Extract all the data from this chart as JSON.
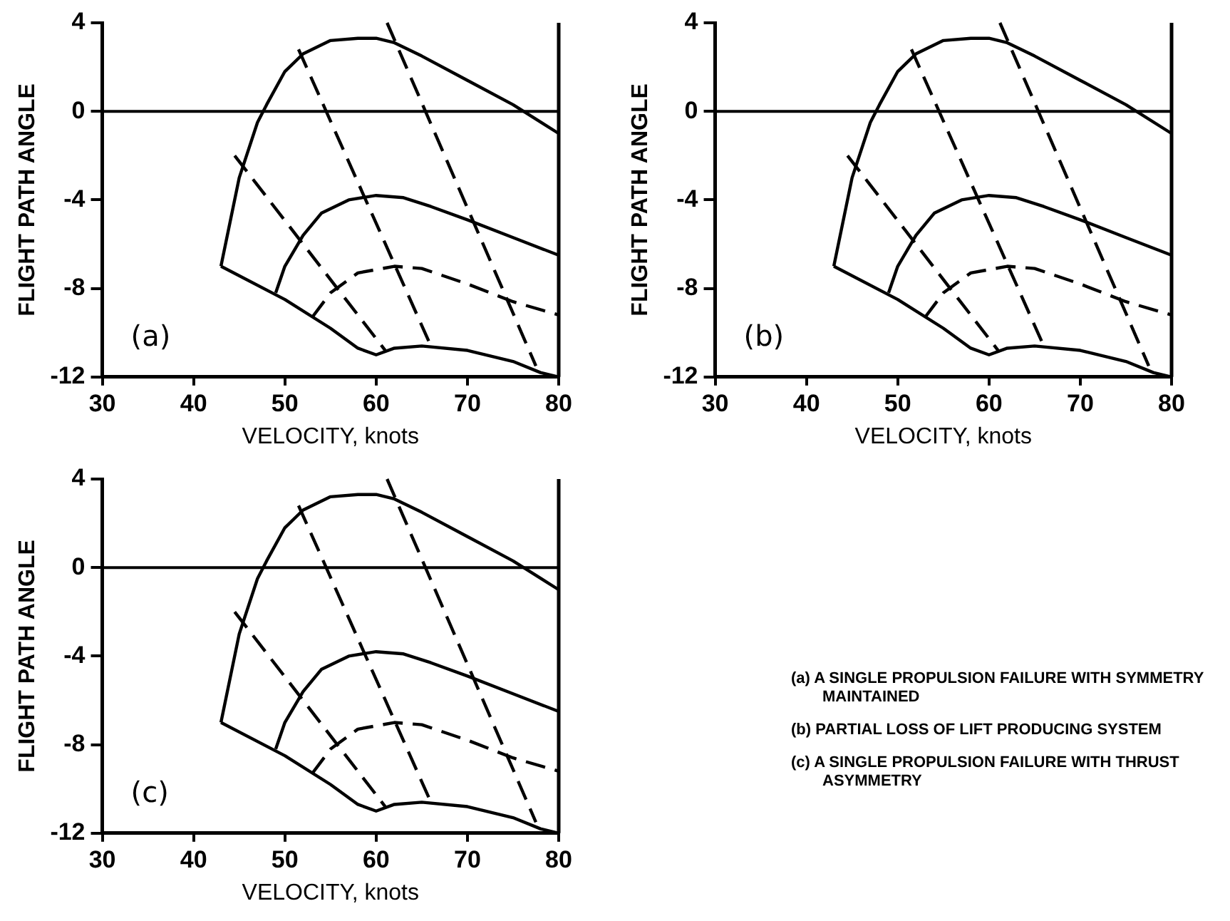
{
  "chart_data": [
    {
      "type": "line",
      "xlabel": "VELOCITY, knots",
      "ylabel": "FLIGHT PATH ANGLE",
      "annotations": [
        "(a)"
      ],
      "xlim": [
        30,
        80
      ],
      "ylim": [
        -12,
        4
      ],
      "xticks": [
        30,
        40,
        50,
        60,
        70,
        80
      ],
      "yticks": [
        -12,
        -8,
        -4,
        0,
        4
      ],
      "grid": false,
      "legend": false,
      "marker": "none",
      "ref_lines": [
        {
          "axis": "y",
          "value": 0
        }
      ],
      "series": [
        {
          "color": "#000000",
          "line_style": "solid",
          "x": [
            43,
            45,
            47,
            48,
            50,
            52,
            55,
            58,
            60,
            62,
            65,
            70,
            75,
            80
          ],
          "values": [
            -7,
            -3,
            -0.5,
            0.3,
            1.8,
            2.6,
            3.2,
            3.3,
            3.3,
            3.1,
            2.5,
            1.4,
            0.3,
            -1
          ]
        },
        {
          "color": "#000000",
          "line_style": "solid",
          "x": [
            43,
            50,
            55,
            58,
            60,
            62,
            65,
            70,
            75,
            78,
            80
          ],
          "values": [
            -7,
            -8.5,
            -9.8,
            -10.7,
            -11,
            -10.7,
            -10.6,
            -10.8,
            -11.3,
            -11.8,
            -12
          ]
        },
        {
          "color": "#000000",
          "line_style": "solid",
          "x": [
            49,
            50,
            52,
            54,
            57,
            60,
            63,
            66,
            70,
            75,
            80
          ],
          "values": [
            -8.2,
            -7,
            -5.6,
            -4.6,
            -4,
            -3.8,
            -3.9,
            -4.3,
            -4.9,
            -5.7,
            -6.5
          ]
        },
        {
          "color": "#000000",
          "line_style": "dashed",
          "x": [
            53,
            55,
            58,
            62,
            65,
            70,
            75,
            80
          ],
          "values": [
            -9.3,
            -8.2,
            -7.3,
            -7,
            -7.1,
            -7.8,
            -8.6,
            -9.2
          ]
        },
        {
          "color": "#000000",
          "line_style": "dashed",
          "x": [
            44.5,
            61
          ],
          "values": [
            -2,
            -10.8
          ]
        },
        {
          "color": "#000000",
          "line_style": "dashed",
          "x": [
            51.5,
            66
          ],
          "values": [
            2.8,
            -10.6
          ]
        },
        {
          "color": "#000000",
          "line_style": "dashed",
          "x": [
            61.2,
            77.5
          ],
          "values": [
            4,
            -11.5
          ]
        }
      ]
    },
    {
      "type": "line",
      "xlabel": "VELOCITY, knots",
      "ylabel": "FLIGHT PATH ANGLE",
      "annotations": [
        "(b)"
      ],
      "xlim": [
        30,
        80
      ],
      "ylim": [
        -12,
        4
      ],
      "xticks": [
        30,
        40,
        50,
        60,
        70,
        80
      ],
      "yticks": [
        -12,
        -8,
        -4,
        0,
        4
      ],
      "grid": false,
      "legend": false,
      "marker": "none",
      "ref_lines": [
        {
          "axis": "y",
          "value": 0
        }
      ],
      "series": [
        {
          "color": "#000000",
          "line_style": "solid",
          "x": [
            43,
            45,
            47,
            48,
            50,
            52,
            55,
            58,
            60,
            62,
            65,
            70,
            75,
            80
          ],
          "values": [
            -7,
            -3,
            -0.5,
            0.3,
            1.8,
            2.6,
            3.2,
            3.3,
            3.3,
            3.1,
            2.5,
            1.4,
            0.3,
            -1
          ]
        },
        {
          "color": "#000000",
          "line_style": "solid",
          "x": [
            43,
            50,
            55,
            58,
            60,
            62,
            65,
            70,
            75,
            78,
            80
          ],
          "values": [
            -7,
            -8.5,
            -9.8,
            -10.7,
            -11,
            -10.7,
            -10.6,
            -10.8,
            -11.3,
            -11.8,
            -12
          ]
        },
        {
          "color": "#000000",
          "line_style": "solid",
          "x": [
            49,
            50,
            52,
            54,
            57,
            60,
            63,
            66,
            70,
            75,
            80
          ],
          "values": [
            -8.2,
            -7,
            -5.6,
            -4.6,
            -4,
            -3.8,
            -3.9,
            -4.3,
            -4.9,
            -5.7,
            -6.5
          ]
        },
        {
          "color": "#000000",
          "line_style": "dashed",
          "x": [
            53,
            55,
            58,
            62,
            65,
            70,
            75,
            80
          ],
          "values": [
            -9.3,
            -8.2,
            -7.3,
            -7,
            -7.1,
            -7.8,
            -8.6,
            -9.2
          ]
        },
        {
          "color": "#000000",
          "line_style": "dashed",
          "x": [
            44.5,
            61
          ],
          "values": [
            -2,
            -10.8
          ]
        },
        {
          "color": "#000000",
          "line_style": "dashed",
          "x": [
            51.5,
            66
          ],
          "values": [
            2.8,
            -10.6
          ]
        },
        {
          "color": "#000000",
          "line_style": "dashed",
          "x": [
            61.2,
            77.5
          ],
          "values": [
            4,
            -11.5
          ]
        }
      ]
    },
    {
      "type": "line",
      "xlabel": "VELOCITY, knots",
      "ylabel": "FLIGHT PATH ANGLE",
      "annotations": [
        "(c)"
      ],
      "xlim": [
        30,
        80
      ],
      "ylim": [
        -12,
        4
      ],
      "xticks": [
        30,
        40,
        50,
        60,
        70,
        80
      ],
      "yticks": [
        -12,
        -8,
        -4,
        0,
        4
      ],
      "grid": false,
      "legend": false,
      "marker": "none",
      "ref_lines": [
        {
          "axis": "y",
          "value": 0
        }
      ],
      "series": [
        {
          "color": "#000000",
          "line_style": "solid",
          "x": [
            43,
            45,
            47,
            48,
            50,
            52,
            55,
            58,
            60,
            62,
            65,
            70,
            75,
            80
          ],
          "values": [
            -7,
            -3,
            -0.5,
            0.3,
            1.8,
            2.6,
            3.2,
            3.3,
            3.3,
            3.1,
            2.5,
            1.4,
            0.3,
            -1
          ]
        },
        {
          "color": "#000000",
          "line_style": "solid",
          "x": [
            43,
            50,
            55,
            58,
            60,
            62,
            65,
            70,
            75,
            78,
            80
          ],
          "values": [
            -7,
            -8.5,
            -9.8,
            -10.7,
            -11,
            -10.7,
            -10.6,
            -10.8,
            -11.3,
            -11.8,
            -12
          ]
        },
        {
          "color": "#000000",
          "line_style": "solid",
          "x": [
            49,
            50,
            52,
            54,
            57,
            60,
            63,
            66,
            70,
            75,
            80
          ],
          "values": [
            -8.2,
            -7,
            -5.6,
            -4.6,
            -4,
            -3.8,
            -3.9,
            -4.3,
            -4.9,
            -5.7,
            -6.5
          ]
        },
        {
          "color": "#000000",
          "line_style": "dashed",
          "x": [
            53,
            55,
            58,
            62,
            65,
            70,
            75,
            80
          ],
          "values": [
            -9.3,
            -8.2,
            -7.3,
            -7,
            -7.1,
            -7.8,
            -8.6,
            -9.2
          ]
        },
        {
          "color": "#000000",
          "line_style": "dashed",
          "x": [
            44.5,
            61
          ],
          "values": [
            -2,
            -10.8
          ]
        },
        {
          "color": "#000000",
          "line_style": "dashed",
          "x": [
            51.5,
            66
          ],
          "values": [
            2.8,
            -10.6
          ]
        },
        {
          "color": "#000000",
          "line_style": "dashed",
          "x": [
            61.2,
            77.5
          ],
          "values": [
            4,
            -11.5
          ]
        }
      ]
    },
    {
      "type": "other",
      "annotations": [
        "(a) A SINGLE PROPULSION FAILURE WITH SYMMETRY MAINTAINED",
        "(b) PARTIAL LOSS OF LIFT PRODUCING SYSTEM",
        "(c) A SINGLE PROPULSION FAILURE WITH THRUST ASYMMETRY"
      ]
    }
  ]
}
